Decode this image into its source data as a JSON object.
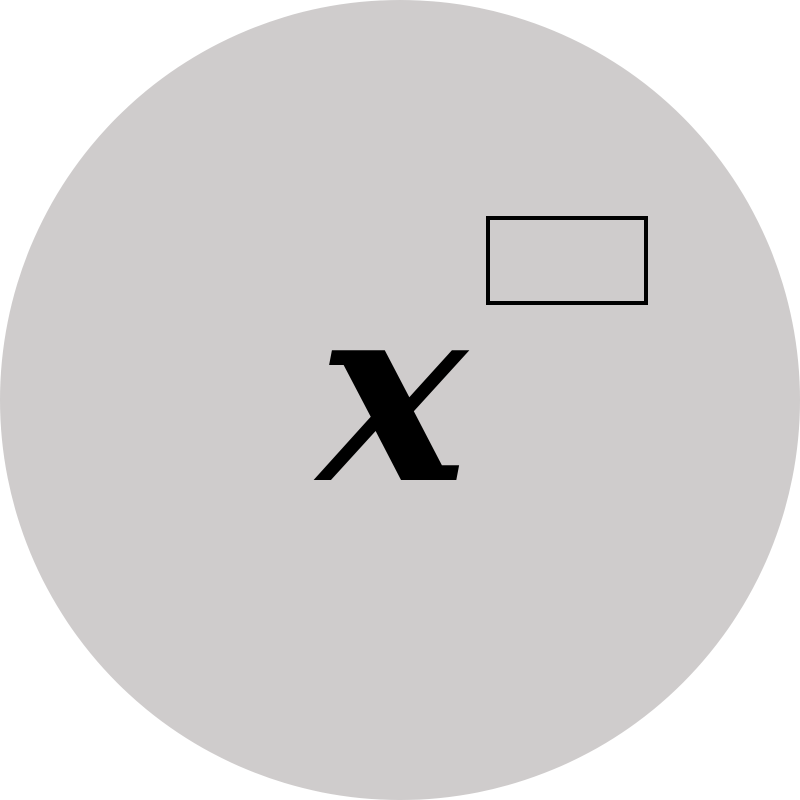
{
  "icon": {
    "name": "power-x-to-the-box-icon",
    "base_symbol": "x",
    "disc_color": "#cfcccc",
    "glyph_color": "#000000"
  }
}
